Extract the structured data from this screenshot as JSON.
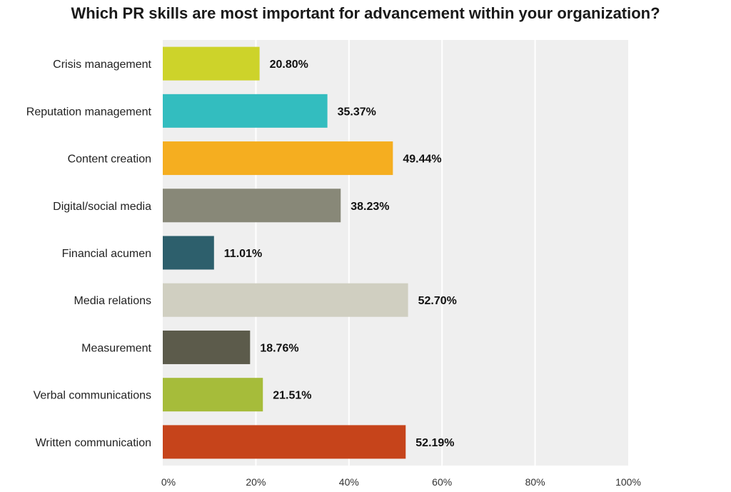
{
  "chart_data": {
    "type": "bar",
    "orientation": "horizontal",
    "title": "Which PR skills are most important for advancement within your organization?",
    "categories": [
      "Crisis management",
      "Reputation management",
      "Content creation",
      "Digital/social media",
      "Financial acumen",
      "Media relations",
      "Measurement",
      "Verbal communications",
      "Written communication"
    ],
    "values": [
      20.8,
      35.37,
      49.44,
      38.23,
      11.01,
      52.7,
      18.76,
      21.51,
      52.19
    ],
    "value_labels": [
      "20.80%",
      "35.37%",
      "49.44%",
      "38.23%",
      "11.01%",
      "52.70%",
      "18.76%",
      "21.51%",
      "52.19%"
    ],
    "colors": [
      "#cdd32a",
      "#33bdbf",
      "#f5ae20",
      "#888878",
      "#2d5f6c",
      "#d0cfc1",
      "#5c5b4b",
      "#a6bc3a",
      "#c6441b"
    ],
    "xlim": [
      0,
      100
    ],
    "xticks": [
      "0%",
      "20%",
      "40%",
      "60%",
      "80%",
      "100%"
    ],
    "xlabel": "",
    "ylabel": "",
    "grid": true,
    "plot_background": "#efefef",
    "gridline_color": "#ffffff"
  }
}
